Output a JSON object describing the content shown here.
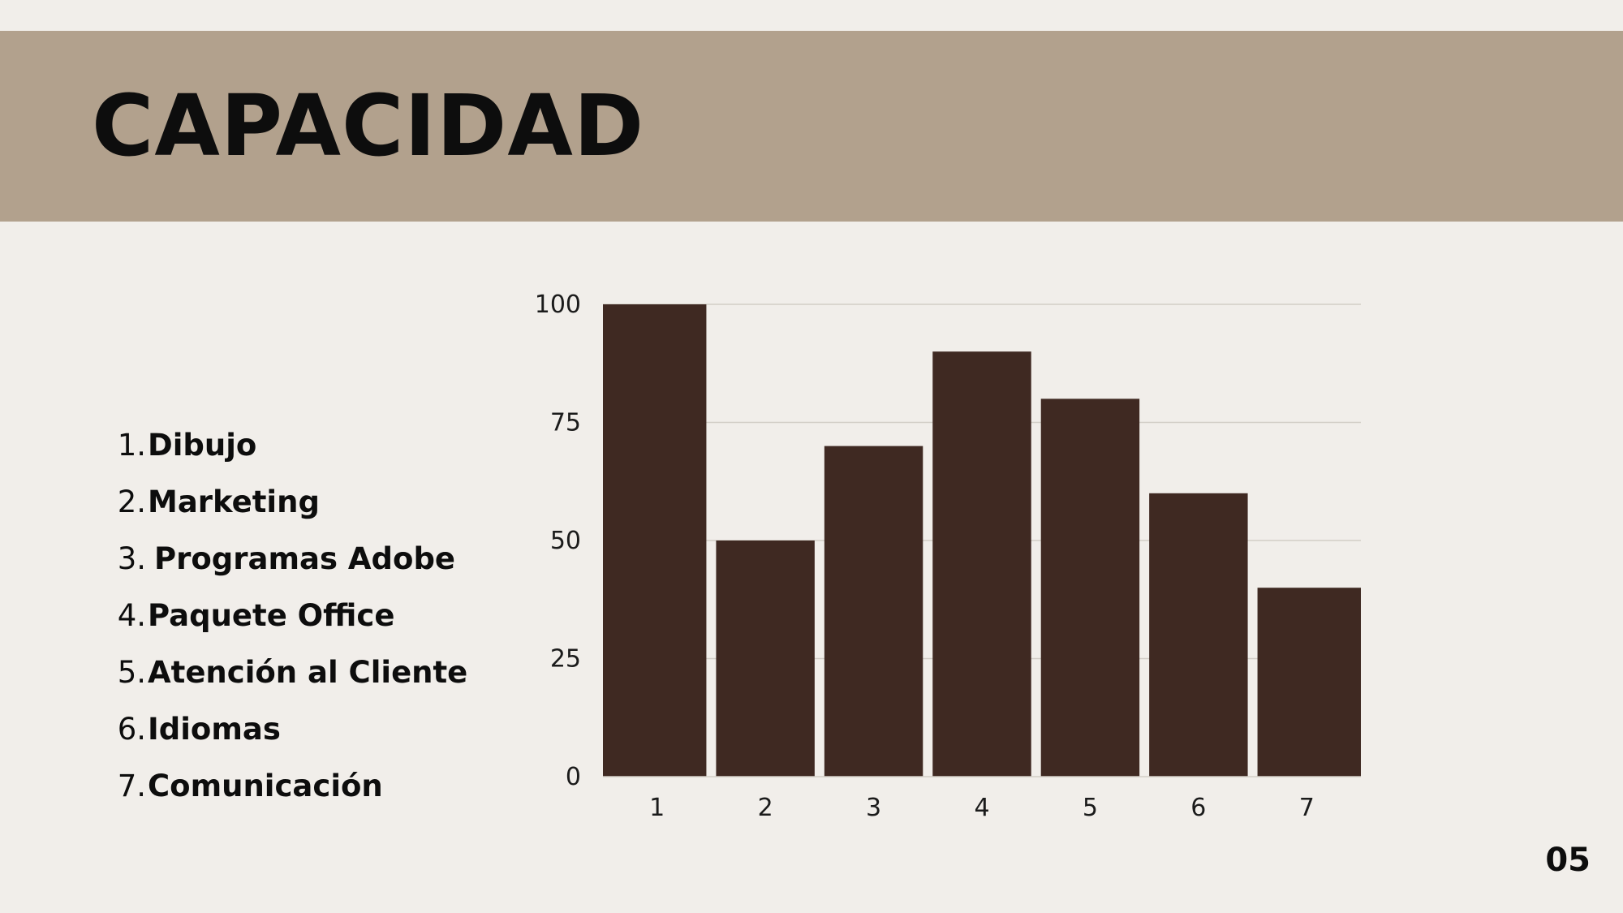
{
  "slide": {
    "title": "CAPACIDAD",
    "page_number": "05"
  },
  "skills": [
    {
      "number": "1.",
      "label": "Dibujo"
    },
    {
      "number": "2.",
      "label": "Marketing"
    },
    {
      "number": "3.",
      "label": "Programas Adobe"
    },
    {
      "number": "4.",
      "label": "Paquete Office"
    },
    {
      "number": "5.",
      "label": "Atención al Cliente"
    },
    {
      "number": "6.",
      "label": "Idiomas"
    },
    {
      "number": "7.",
      "label": "Comunicación"
    }
  ],
  "colors": {
    "background": "#f1eeea",
    "header_band": "#b2a18d",
    "bar": "#3f2922",
    "gridline": "#d2cdc6"
  },
  "chart_data": {
    "type": "bar",
    "categories": [
      "1",
      "2",
      "3",
      "4",
      "5",
      "6",
      "7"
    ],
    "values": [
      100,
      50,
      70,
      90,
      80,
      60,
      40
    ],
    "yticks": [
      0,
      25,
      50,
      75,
      100
    ],
    "ylim": [
      0,
      100
    ],
    "grid": true,
    "title": "",
    "xlabel": "",
    "ylabel": ""
  }
}
